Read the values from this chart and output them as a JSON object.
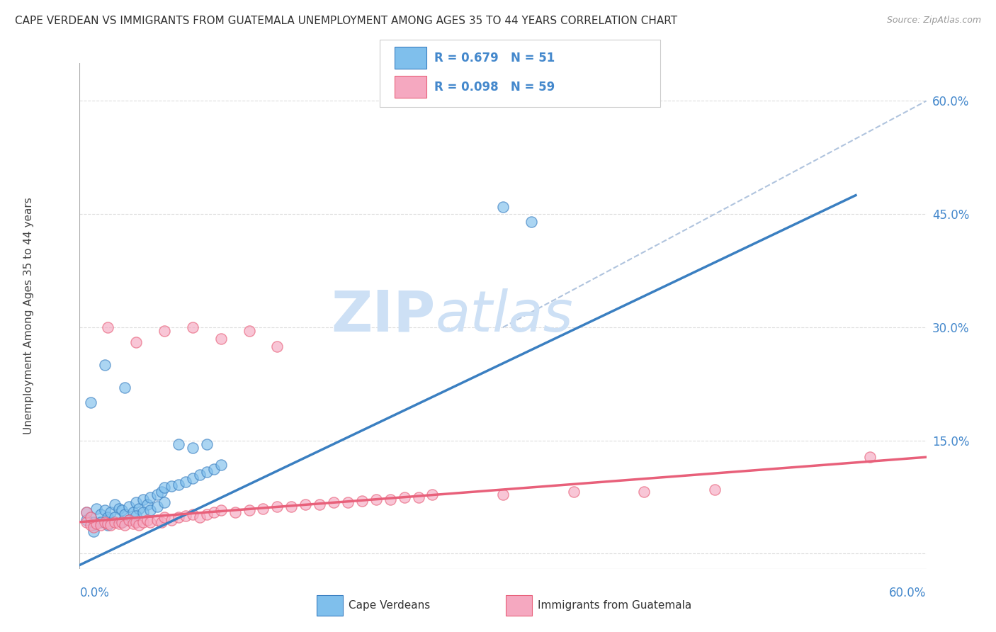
{
  "title": "CAPE VERDEAN VS IMMIGRANTS FROM GUATEMALA UNEMPLOYMENT AMONG AGES 35 TO 44 YEARS CORRELATION CHART",
  "source": "Source: ZipAtlas.com",
  "ylabel": "Unemployment Among Ages 35 to 44 years",
  "xmin": 0.0,
  "xmax": 0.6,
  "ymin": -0.02,
  "ymax": 0.65,
  "blue_R": 0.679,
  "blue_N": 51,
  "pink_R": 0.098,
  "pink_N": 59,
  "blue_scatter_color": "#7fbfec",
  "pink_scatter_color": "#f5a8c0",
  "blue_line_color": "#3a7fc1",
  "pink_line_color": "#e8607a",
  "ref_line_color": "#b0c4de",
  "watermark_color": "#cde0f5",
  "title_color": "#333333",
  "axis_label_color": "#4488cc",
  "gridline_color": "#dddddd",
  "background_color": "#ffffff",
  "blue_scatter": [
    [
      0.005,
      0.055
    ],
    [
      0.008,
      0.048
    ],
    [
      0.01,
      0.042
    ],
    [
      0.012,
      0.06
    ],
    [
      0.015,
      0.052
    ],
    [
      0.018,
      0.058
    ],
    [
      0.02,
      0.048
    ],
    [
      0.022,
      0.055
    ],
    [
      0.025,
      0.065
    ],
    [
      0.028,
      0.06
    ],
    [
      0.03,
      0.058
    ],
    [
      0.032,
      0.052
    ],
    [
      0.035,
      0.062
    ],
    [
      0.038,
      0.055
    ],
    [
      0.04,
      0.068
    ],
    [
      0.042,
      0.06
    ],
    [
      0.045,
      0.072
    ],
    [
      0.048,
      0.065
    ],
    [
      0.05,
      0.075
    ],
    [
      0.055,
      0.078
    ],
    [
      0.058,
      0.082
    ],
    [
      0.06,
      0.088
    ],
    [
      0.065,
      0.09
    ],
    [
      0.07,
      0.092
    ],
    [
      0.075,
      0.095
    ],
    [
      0.08,
      0.1
    ],
    [
      0.085,
      0.105
    ],
    [
      0.09,
      0.108
    ],
    [
      0.095,
      0.112
    ],
    [
      0.1,
      0.118
    ],
    [
      0.005,
      0.045
    ],
    [
      0.01,
      0.038
    ],
    [
      0.015,
      0.042
    ],
    [
      0.02,
      0.038
    ],
    [
      0.025,
      0.048
    ],
    [
      0.03,
      0.042
    ],
    [
      0.035,
      0.045
    ],
    [
      0.04,
      0.05
    ],
    [
      0.045,
      0.055
    ],
    [
      0.05,
      0.058
    ],
    [
      0.055,
      0.062
    ],
    [
      0.06,
      0.068
    ],
    [
      0.018,
      0.25
    ],
    [
      0.032,
      0.22
    ],
    [
      0.008,
      0.2
    ],
    [
      0.3,
      0.46
    ],
    [
      0.32,
      0.44
    ],
    [
      0.07,
      0.145
    ],
    [
      0.08,
      0.14
    ],
    [
      0.09,
      0.145
    ],
    [
      0.01,
      0.03
    ]
  ],
  "pink_scatter": [
    [
      0.005,
      0.042
    ],
    [
      0.008,
      0.038
    ],
    [
      0.01,
      0.035
    ],
    [
      0.012,
      0.04
    ],
    [
      0.015,
      0.038
    ],
    [
      0.018,
      0.042
    ],
    [
      0.02,
      0.04
    ],
    [
      0.022,
      0.038
    ],
    [
      0.025,
      0.042
    ],
    [
      0.028,
      0.04
    ],
    [
      0.03,
      0.042
    ],
    [
      0.032,
      0.038
    ],
    [
      0.035,
      0.045
    ],
    [
      0.038,
      0.04
    ],
    [
      0.04,
      0.042
    ],
    [
      0.042,
      0.038
    ],
    [
      0.045,
      0.042
    ],
    [
      0.048,
      0.045
    ],
    [
      0.05,
      0.042
    ],
    [
      0.055,
      0.045
    ],
    [
      0.058,
      0.042
    ],
    [
      0.06,
      0.048
    ],
    [
      0.065,
      0.045
    ],
    [
      0.07,
      0.048
    ],
    [
      0.075,
      0.05
    ],
    [
      0.08,
      0.052
    ],
    [
      0.085,
      0.048
    ],
    [
      0.09,
      0.052
    ],
    [
      0.095,
      0.055
    ],
    [
      0.1,
      0.058
    ],
    [
      0.11,
      0.055
    ],
    [
      0.12,
      0.058
    ],
    [
      0.13,
      0.06
    ],
    [
      0.14,
      0.062
    ],
    [
      0.15,
      0.062
    ],
    [
      0.16,
      0.065
    ],
    [
      0.17,
      0.065
    ],
    [
      0.18,
      0.068
    ],
    [
      0.19,
      0.068
    ],
    [
      0.2,
      0.07
    ],
    [
      0.21,
      0.072
    ],
    [
      0.22,
      0.072
    ],
    [
      0.23,
      0.075
    ],
    [
      0.24,
      0.075
    ],
    [
      0.25,
      0.078
    ],
    [
      0.3,
      0.078
    ],
    [
      0.35,
      0.082
    ],
    [
      0.4,
      0.082
    ],
    [
      0.45,
      0.085
    ],
    [
      0.02,
      0.3
    ],
    [
      0.04,
      0.28
    ],
    [
      0.06,
      0.295
    ],
    [
      0.08,
      0.3
    ],
    [
      0.1,
      0.285
    ],
    [
      0.12,
      0.295
    ],
    [
      0.14,
      0.275
    ],
    [
      0.56,
      0.128
    ],
    [
      0.005,
      0.055
    ],
    [
      0.008,
      0.048
    ]
  ],
  "blue_line_x": [
    0.0,
    0.55
  ],
  "blue_line_y": [
    -0.015,
    0.475
  ],
  "pink_line_x": [
    0.0,
    0.6
  ],
  "pink_line_y": [
    0.042,
    0.128
  ],
  "ref_line_x": [
    0.3,
    0.6
  ],
  "ref_line_y": [
    0.3,
    0.6
  ]
}
